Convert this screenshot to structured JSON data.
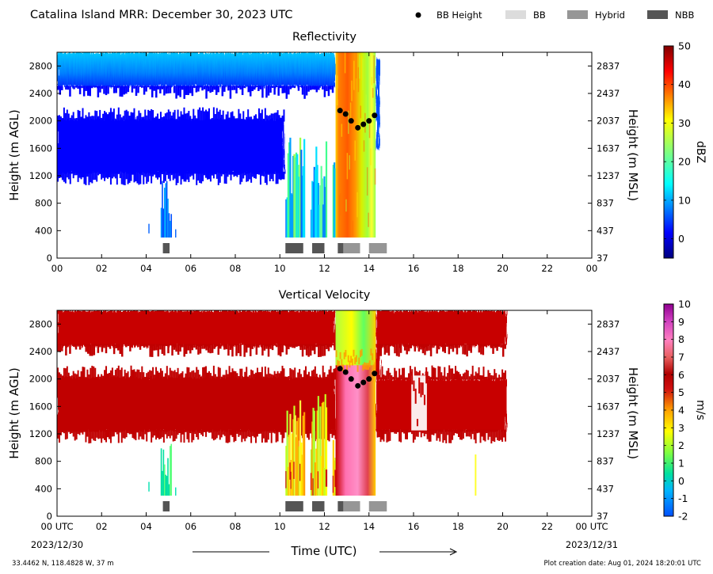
{
  "header": {
    "title": "Catalina Island MRR:  December 30, 2023 UTC",
    "legend": [
      {
        "label": "BB Height",
        "marker": "dot",
        "color": "#000000"
      },
      {
        "label": "BB",
        "marker": "box",
        "color": "#dcdcdc"
      },
      {
        "label": "Hybrid",
        "marker": "box",
        "color": "#969696"
      },
      {
        "label": "NBB",
        "marker": "box",
        "color": "#555555"
      }
    ]
  },
  "chart_data": [
    {
      "type": "heatmap",
      "title": "Reflectivity",
      "ylabel": "Height (m AGL)",
      "ylabel_right": "Height (m MSL)",
      "x_range": [
        0,
        24
      ],
      "x_ticks": [
        "00",
        "02",
        "04",
        "06",
        "08",
        "10",
        "12",
        "14",
        "16",
        "18",
        "20",
        "22",
        "00"
      ],
      "y_range": [
        0,
        3000
      ],
      "y_ticks": [
        "0",
        "400",
        "800",
        "1200",
        "1600",
        "2000",
        "2400",
        "2800"
      ],
      "y_ticks_right": [
        "37",
        "437",
        "837",
        "1237",
        "1637",
        "2037",
        "2437",
        "2837"
      ],
      "colorbar": {
        "label": "dBZ",
        "min": -5,
        "max": 50,
        "ticks": [
          "0",
          "10",
          "20",
          "30",
          "40",
          "50"
        ],
        "colormap": "jet"
      },
      "bright_band_height": {
        "x": [
          12.7,
          12.95,
          13.2,
          13.5,
          13.75,
          14.0,
          14.25
        ],
        "y": [
          2150,
          2100,
          2000,
          1900,
          1950,
          2000,
          2080
        ]
      },
      "bright_band_type": [
        {
          "start": 4.75,
          "end": 5.05,
          "type": "NBB"
        },
        {
          "start": 10.25,
          "end": 11.05,
          "type": "NBB"
        },
        {
          "start": 11.45,
          "end": 12.0,
          "type": "NBB"
        },
        {
          "start": 12.6,
          "end": 12.85,
          "type": "NBB"
        },
        {
          "start": 12.85,
          "end": 13.6,
          "type": "Hybrid"
        },
        {
          "start": 14.0,
          "end": 14.8,
          "type": "Hybrid"
        }
      ]
    },
    {
      "type": "heatmap",
      "title": "Vertical Velocity",
      "ylabel": "Height (m AGL)",
      "ylabel_right": "Height (m MSL)",
      "xlabel": "Time (UTC)",
      "x_range": [
        0,
        24
      ],
      "x_ticks": [
        "00 UTC",
        "02",
        "04",
        "06",
        "08",
        "10",
        "12",
        "14",
        "16",
        "18",
        "20",
        "22",
        "00 UTC"
      ],
      "x_date_left": "2023/12/30",
      "x_date_right": "2023/12/31",
      "y_range": [
        0,
        3000
      ],
      "y_ticks": [
        "0",
        "400",
        "800",
        "1200",
        "1600",
        "2000",
        "2400",
        "2800"
      ],
      "y_ticks_right": [
        "37",
        "437",
        "837",
        "1237",
        "1637",
        "2037",
        "2437",
        "2837"
      ],
      "colorbar": {
        "label": "m/s",
        "min": -2,
        "max": 10,
        "ticks": [
          "-2",
          "-1",
          "0",
          "1",
          "2",
          "3",
          "4",
          "5",
          "6",
          "7",
          "8",
          "9",
          "10"
        ],
        "colormap": "velocity"
      },
      "bright_band_height": {
        "x": [
          12.7,
          12.95,
          13.2,
          13.5,
          13.75,
          14.0,
          14.25
        ],
        "y": [
          2150,
          2100,
          2000,
          1900,
          1950,
          2000,
          2080
        ]
      },
      "bright_band_type": [
        {
          "start": 4.75,
          "end": 5.05,
          "type": "NBB"
        },
        {
          "start": 10.25,
          "end": 11.05,
          "type": "NBB"
        },
        {
          "start": 11.45,
          "end": 12.0,
          "type": "NBB"
        },
        {
          "start": 12.6,
          "end": 12.85,
          "type": "NBB"
        },
        {
          "start": 12.85,
          "end": 13.6,
          "type": "Hybrid"
        },
        {
          "start": 14.0,
          "end": 14.8,
          "type": "Hybrid"
        }
      ]
    }
  ],
  "footer": {
    "location": "33.4462 N, 118.4828 W, 37 m",
    "creation": "Plot creation date: Aug 01, 2024 18:20:01 UTC"
  }
}
